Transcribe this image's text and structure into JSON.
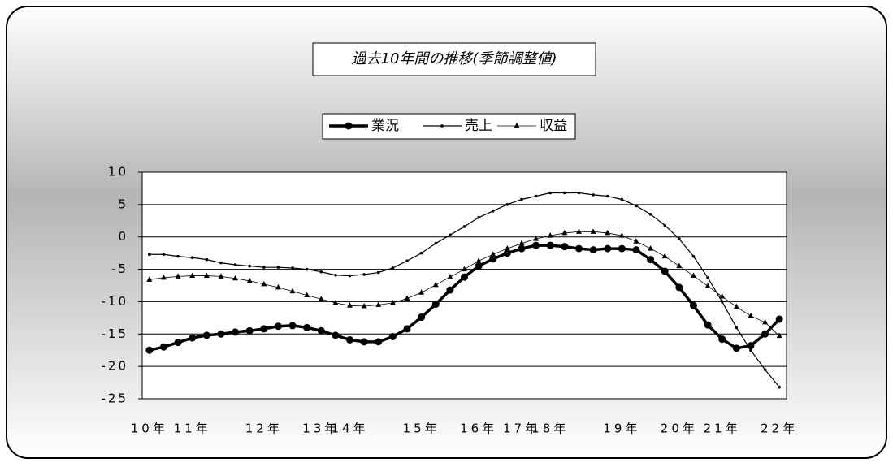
{
  "chart_data": {
    "type": "line",
    "title": "過去10年間の推移(季節調整値)",
    "categories": [
      "10年",
      null,
      null,
      "11年",
      null,
      null,
      null,
      null,
      "12年",
      null,
      null,
      null,
      "13年",
      null,
      "14年",
      null,
      null,
      null,
      null,
      "15年",
      null,
      null,
      null,
      "16年",
      null,
      null,
      "17年",
      null,
      "18年",
      null,
      null,
      null,
      null,
      "19年",
      null,
      null,
      null,
      "20年",
      null,
      null,
      "21年",
      null,
      null,
      null,
      "22年"
    ],
    "series": [
      {
        "name": "業況",
        "color": "#000000",
        "marker": "circle",
        "line_width": 3.5,
        "values": [
          -17.5,
          -17.0,
          -16.3,
          -15.6,
          -15.2,
          -15.0,
          -14.7,
          -14.5,
          -14.2,
          -13.8,
          -13.7,
          -14.0,
          -14.5,
          -15.2,
          -15.9,
          -16.2,
          -16.2,
          -15.4,
          -14.2,
          -12.4,
          -10.4,
          -8.2,
          -6.2,
          -4.5,
          -3.4,
          -2.5,
          -1.8,
          -1.3,
          -1.3,
          -1.5,
          -1.8,
          -2.0,
          -1.8,
          -1.8,
          -2.0,
          -3.5,
          -5.3,
          -7.8,
          -10.6,
          -13.6,
          -15.8,
          -17.2,
          -16.8,
          -15.0,
          -12.7
        ]
      },
      {
        "name": "売上",
        "color": "#000000",
        "marker": "dot",
        "line_width": 1.2,
        "values": [
          -2.7,
          -2.7,
          -3.0,
          -3.2,
          -3.5,
          -4.0,
          -4.3,
          -4.5,
          -4.7,
          -4.7,
          -4.8,
          -5.0,
          -5.4,
          -5.9,
          -6.0,
          -5.8,
          -5.5,
          -4.8,
          -3.7,
          -2.5,
          -1.0,
          0.3,
          1.6,
          3.0,
          4.0,
          5.0,
          5.8,
          6.3,
          6.8,
          6.8,
          6.8,
          6.5,
          6.3,
          5.8,
          4.8,
          3.5,
          1.8,
          -0.3,
          -3.0,
          -6.3,
          -10.0,
          -14.0,
          -17.5,
          -20.5,
          -23.2
        ]
      },
      {
        "name": "収益",
        "color": "#000000",
        "marker": "triangle",
        "line_width": 0.8,
        "values": [
          -6.6,
          -6.3,
          -6.1,
          -6.0,
          -6.0,
          -6.1,
          -6.4,
          -6.8,
          -7.3,
          -7.8,
          -8.4,
          -9.0,
          -9.6,
          -10.2,
          -10.6,
          -10.7,
          -10.5,
          -10.2,
          -9.5,
          -8.6,
          -7.4,
          -6.2,
          -5.0,
          -3.7,
          -2.7,
          -1.8,
          -1.0,
          -0.3,
          0.2,
          0.6,
          0.8,
          0.8,
          0.6,
          0.2,
          -0.7,
          -1.8,
          -3.0,
          -4.5,
          -6.0,
          -7.6,
          -9.2,
          -10.8,
          -12.2,
          -13.2,
          -15.3
        ]
      }
    ],
    "ylim": [
      -25,
      10
    ],
    "yticks": [
      10,
      5,
      0,
      -5,
      -10,
      -15,
      -20,
      -25
    ],
    "grid": true
  }
}
